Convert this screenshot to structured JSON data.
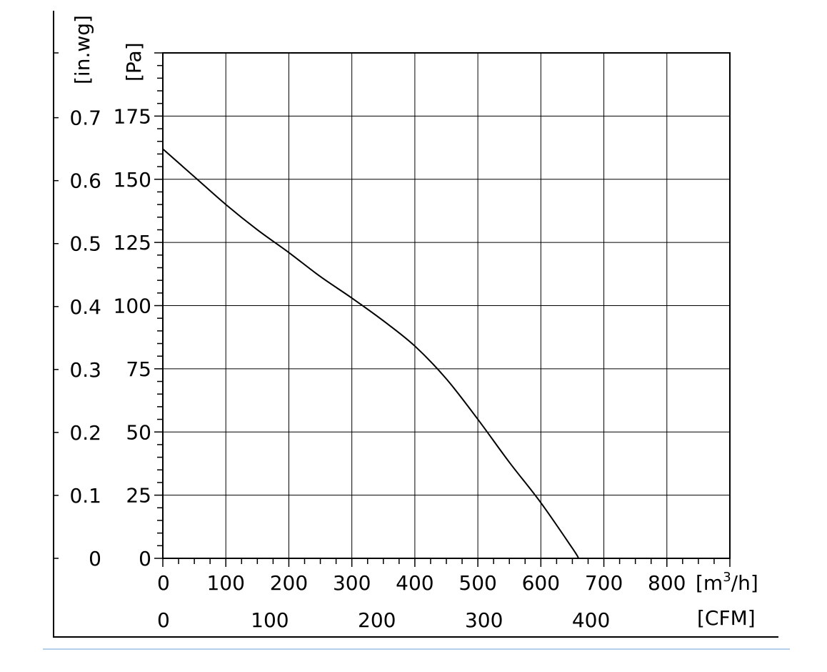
{
  "chart_data": {
    "type": "line",
    "title": "",
    "x_primary": {
      "unit_label_base": "[m",
      "unit_label_sup": "3",
      "unit_label_tail": "/h]",
      "range": [
        0,
        900
      ],
      "ticks": [
        0,
        100,
        200,
        300,
        400,
        500,
        600,
        700,
        800
      ],
      "tick_labels": [
        "0",
        "100",
        "200",
        "300",
        "400",
        "500",
        "600",
        "700",
        "800"
      ]
    },
    "x_secondary": {
      "unit_label": "[CFM]",
      "ticks": [
        0,
        100,
        200,
        300,
        400
      ],
      "tick_labels": [
        "0",
        "100",
        "200",
        "300",
        "400"
      ]
    },
    "y_primary": {
      "unit_label": "[Pa]",
      "range": [
        0,
        200
      ],
      "ticks": [
        0,
        25,
        50,
        75,
        100,
        125,
        150,
        175
      ],
      "tick_labels": [
        "0",
        "25",
        "50",
        "75",
        "100",
        "125",
        "150",
        "175"
      ]
    },
    "y_secondary": {
      "unit_label": "[in.wg]",
      "ticks": [
        0,
        0.1,
        0.2,
        0.3,
        0.4,
        0.5,
        0.6,
        0.7
      ],
      "tick_labels": [
        "0",
        "0.1",
        "0.2",
        "0.3",
        "0.4",
        "0.5",
        "0.6",
        "0.7"
      ]
    },
    "grid": true,
    "series": [
      {
        "x": [
          0,
          50,
          100,
          150,
          200,
          250,
          300,
          350,
          400,
          450,
          500,
          550,
          600,
          650,
          660
        ],
        "y": [
          162,
          151,
          140,
          130,
          121,
          111.5,
          103,
          94,
          84,
          71,
          55,
          38,
          22,
          4,
          0
        ],
        "color": "#000000"
      }
    ]
  }
}
